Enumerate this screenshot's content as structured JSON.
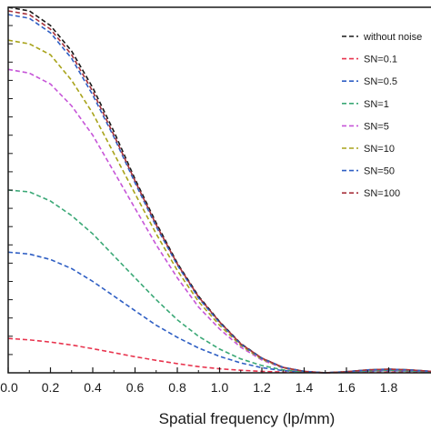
{
  "chart_data": {
    "type": "line",
    "title": "",
    "xlabel": "Spatial frequency (lp/mm)",
    "ylabel": "",
    "xlim": [
      0.0,
      2.0
    ],
    "ylim": [
      0.0,
      1.0
    ],
    "x_ticks": [
      0.0,
      0.2,
      0.4,
      0.6,
      0.8,
      1.0,
      1.2,
      1.4,
      1.6,
      1.8
    ],
    "x_tick_labels": [
      "0.0",
      "0.2",
      "0.4",
      "0.6",
      "0.8",
      "1.0",
      "1.2",
      "1.4",
      "1.6",
      "1.8"
    ],
    "y_minor_ticks": [
      0.05,
      0.1,
      0.15,
      0.2,
      0.25,
      0.3,
      0.35,
      0.4,
      0.45,
      0.5,
      0.55,
      0.6,
      0.65,
      0.7,
      0.75,
      0.8,
      0.85,
      0.9,
      0.95
    ],
    "grid": false,
    "legend_position": "top-right",
    "line_style": "dashed",
    "x": [
      0.0,
      0.1,
      0.2,
      0.3,
      0.4,
      0.5,
      0.6,
      0.7,
      0.8,
      0.9,
      1.0,
      1.1,
      1.2,
      1.3,
      1.4,
      1.5,
      1.6,
      1.7,
      1.8,
      1.9,
      2.0
    ],
    "series": [
      {
        "name": "without noise",
        "color": "#1a1a1a",
        "values": [
          1.0,
          0.99,
          0.95,
          0.88,
          0.78,
          0.66,
          0.53,
          0.41,
          0.3,
          0.21,
          0.14,
          0.08,
          0.04,
          0.015,
          0.004,
          0.0,
          0.003,
          0.008,
          0.01,
          0.008,
          0.004
        ]
      },
      {
        "name": "SN=0.1",
        "color": "#e8344e",
        "values": [
          0.094,
          0.09,
          0.084,
          0.076,
          0.066,
          0.055,
          0.044,
          0.034,
          0.025,
          0.017,
          0.011,
          0.007,
          0.004,
          0.002,
          0.001,
          0.0,
          0.001,
          0.002,
          0.002,
          0.002,
          0.001
        ]
      },
      {
        "name": "SN=0.5",
        "color": "#2f5fc4",
        "values": [
          0.33,
          0.325,
          0.31,
          0.285,
          0.25,
          0.21,
          0.17,
          0.13,
          0.097,
          0.068,
          0.045,
          0.027,
          0.014,
          0.006,
          0.002,
          0.0,
          0.002,
          0.005,
          0.006,
          0.005,
          0.003
        ]
      },
      {
        "name": "SN=1",
        "color": "#3aa876",
        "values": [
          0.5,
          0.495,
          0.47,
          0.43,
          0.38,
          0.32,
          0.26,
          0.2,
          0.145,
          0.1,
          0.065,
          0.038,
          0.02,
          0.008,
          0.002,
          0.0,
          0.002,
          0.005,
          0.007,
          0.005,
          0.003
        ]
      },
      {
        "name": "SN=5",
        "color": "#c655d8",
        "values": [
          0.83,
          0.82,
          0.79,
          0.73,
          0.65,
          0.55,
          0.45,
          0.35,
          0.26,
          0.18,
          0.12,
          0.07,
          0.035,
          0.013,
          0.003,
          0.0,
          0.003,
          0.007,
          0.009,
          0.007,
          0.004
        ]
      },
      {
        "name": "SN=10",
        "color": "#a8a31a",
        "values": [
          0.91,
          0.9,
          0.87,
          0.8,
          0.71,
          0.6,
          0.49,
          0.38,
          0.28,
          0.195,
          0.13,
          0.075,
          0.037,
          0.014,
          0.003,
          0.0,
          0.003,
          0.008,
          0.01,
          0.008,
          0.004
        ]
      },
      {
        "name": "SN=50",
        "color": "#2f5fc4",
        "values": [
          0.98,
          0.97,
          0.93,
          0.86,
          0.76,
          0.645,
          0.52,
          0.4,
          0.295,
          0.205,
          0.137,
          0.078,
          0.039,
          0.015,
          0.004,
          0.0,
          0.003,
          0.008,
          0.01,
          0.008,
          0.004
        ]
      },
      {
        "name": "SN=100",
        "color": "#a8323c",
        "values": [
          0.99,
          0.98,
          0.94,
          0.87,
          0.77,
          0.65,
          0.525,
          0.405,
          0.298,
          0.208,
          0.139,
          0.079,
          0.04,
          0.015,
          0.004,
          0.0,
          0.003,
          0.008,
          0.01,
          0.008,
          0.004
        ]
      }
    ]
  }
}
